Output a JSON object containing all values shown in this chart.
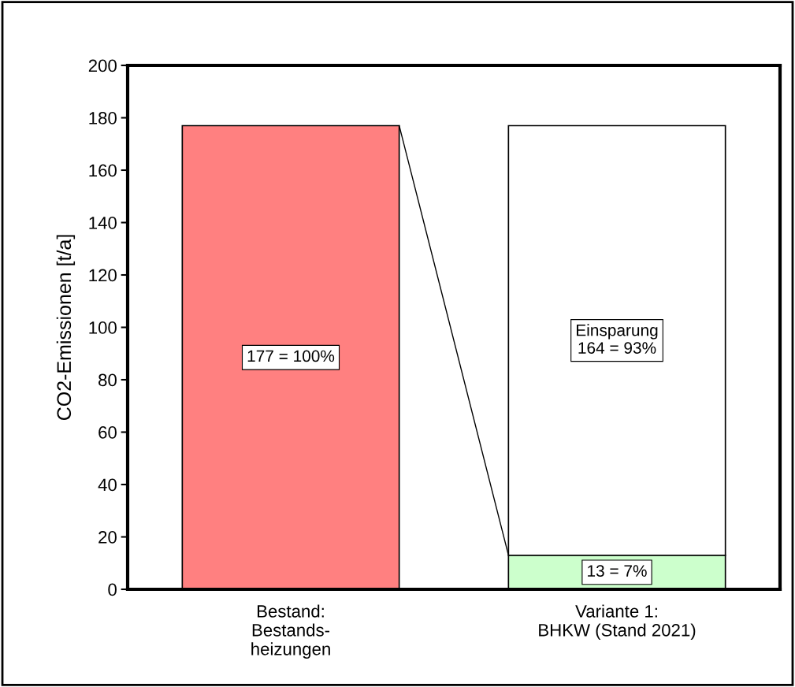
{
  "chart_data": {
    "type": "bar",
    "stacked": true,
    "categories": [
      "Bestand:\nBestands-\nheizungen",
      "Variante 1:\nBHKW (Stand 2021)"
    ],
    "ylabel": "CO2-Emissionen [t/a]",
    "ylim": [
      0,
      200
    ],
    "yticks": [
      0,
      20,
      40,
      60,
      80,
      100,
      120,
      140,
      160,
      180,
      200
    ],
    "series": [
      {
        "colors": [
          "#ff8080",
          "#ccffcc"
        ],
        "values": [
          177,
          13
        ],
        "value_labels": [
          "177 = 100%",
          "13 = 7%"
        ]
      },
      {
        "colors": [
          "#ffffff",
          "#ffffff"
        ],
        "values": [
          null,
          164
        ],
        "value_labels": [
          null,
          "Einsparung\n164 = 93%"
        ]
      }
    ]
  }
}
